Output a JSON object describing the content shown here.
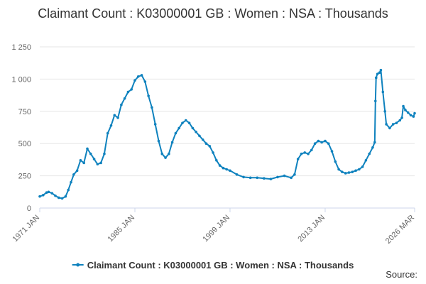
{
  "title": "Claimant Count : K03000001 GB : Women : NSA : Thousands",
  "source_label": "Source:",
  "chart_data": {
    "type": "line",
    "xlabel": "",
    "ylabel": "",
    "title": "Claimant Count : K03000001 GB : Women : NSA : Thousands",
    "y_ticks": [
      "0",
      "250",
      "500",
      "750",
      "1 000",
      "1 250"
    ],
    "y_tick_values": [
      0,
      250,
      500,
      750,
      1000,
      1250
    ],
    "ylim": [
      0,
      1250
    ],
    "x_ticks": [
      "1971 JAN",
      "1985 JAN",
      "1999 JAN",
      "2013 JAN",
      "2026 MAR"
    ],
    "x_tick_values": [
      1971.0,
      1985.0,
      1999.0,
      2013.0,
      2026.17
    ],
    "xlim": [
      1971.0,
      2026.17
    ],
    "grid": true,
    "legend_position": "bottom",
    "color": "#0f82be",
    "series": [
      {
        "name": "Claimant Count : K03000001 GB : Women : NSA : Thousands",
        "points": [
          [
            1971.0,
            90
          ],
          [
            1971.5,
            100
          ],
          [
            1972.0,
            120
          ],
          [
            1972.3,
            125
          ],
          [
            1972.8,
            115
          ],
          [
            1973.3,
            95
          ],
          [
            1973.8,
            80
          ],
          [
            1974.3,
            75
          ],
          [
            1974.8,
            90
          ],
          [
            1975.2,
            140
          ],
          [
            1975.6,
            200
          ],
          [
            1976.0,
            260
          ],
          [
            1976.5,
            290
          ],
          [
            1977.0,
            370
          ],
          [
            1977.5,
            350
          ],
          [
            1978.0,
            460
          ],
          [
            1978.5,
            420
          ],
          [
            1979.0,
            380
          ],
          [
            1979.5,
            340
          ],
          [
            1980.0,
            350
          ],
          [
            1980.5,
            420
          ],
          [
            1981.0,
            580
          ],
          [
            1981.5,
            640
          ],
          [
            1982.0,
            720
          ],
          [
            1982.5,
            700
          ],
          [
            1983.0,
            800
          ],
          [
            1983.5,
            850
          ],
          [
            1984.0,
            900
          ],
          [
            1984.5,
            920
          ],
          [
            1985.0,
            990
          ],
          [
            1985.5,
            1020
          ],
          [
            1986.0,
            1030
          ],
          [
            1986.5,
            980
          ],
          [
            1987.0,
            870
          ],
          [
            1987.5,
            780
          ],
          [
            1988.0,
            650
          ],
          [
            1988.5,
            520
          ],
          [
            1989.0,
            420
          ],
          [
            1989.5,
            390
          ],
          [
            1990.0,
            420
          ],
          [
            1990.5,
            510
          ],
          [
            1991.0,
            580
          ],
          [
            1991.5,
            620
          ],
          [
            1992.0,
            660
          ],
          [
            1992.5,
            680
          ],
          [
            1993.0,
            660
          ],
          [
            1993.5,
            620
          ],
          [
            1994.0,
            590
          ],
          [
            1994.5,
            560
          ],
          [
            1995.0,
            530
          ],
          [
            1995.5,
            500
          ],
          [
            1996.0,
            480
          ],
          [
            1996.5,
            430
          ],
          [
            1997.0,
            370
          ],
          [
            1997.5,
            330
          ],
          [
            1998.0,
            310
          ],
          [
            1998.5,
            300
          ],
          [
            1999.0,
            290
          ],
          [
            2000.0,
            260
          ],
          [
            2001.0,
            240
          ],
          [
            2002.0,
            235
          ],
          [
            2003.0,
            235
          ],
          [
            2004.0,
            230
          ],
          [
            2005.0,
            225
          ],
          [
            2006.0,
            240
          ],
          [
            2007.0,
            250
          ],
          [
            2008.0,
            235
          ],
          [
            2008.5,
            260
          ],
          [
            2009.0,
            380
          ],
          [
            2009.5,
            420
          ],
          [
            2010.0,
            430
          ],
          [
            2010.5,
            420
          ],
          [
            2011.0,
            450
          ],
          [
            2011.5,
            500
          ],
          [
            2012.0,
            520
          ],
          [
            2012.5,
            510
          ],
          [
            2013.0,
            520
          ],
          [
            2013.5,
            500
          ],
          [
            2014.0,
            440
          ],
          [
            2014.5,
            360
          ],
          [
            2015.0,
            300
          ],
          [
            2015.5,
            280
          ],
          [
            2016.0,
            270
          ],
          [
            2016.5,
            275
          ],
          [
            2017.0,
            280
          ],
          [
            2017.5,
            290
          ],
          [
            2018.0,
            300
          ],
          [
            2018.5,
            320
          ],
          [
            2019.0,
            370
          ],
          [
            2019.5,
            420
          ],
          [
            2020.0,
            470
          ],
          [
            2020.3,
            510
          ],
          [
            2020.4,
            830
          ],
          [
            2020.5,
            1010
          ],
          [
            2020.7,
            1040
          ],
          [
            2021.0,
            1050
          ],
          [
            2021.2,
            1070
          ],
          [
            2021.5,
            900
          ],
          [
            2021.8,
            750
          ],
          [
            2022.0,
            650
          ],
          [
            2022.5,
            620
          ],
          [
            2023.0,
            650
          ],
          [
            2023.5,
            660
          ],
          [
            2024.0,
            680
          ],
          [
            2024.3,
            700
          ],
          [
            2024.5,
            790
          ],
          [
            2024.8,
            760
          ],
          [
            2025.2,
            740
          ],
          [
            2025.6,
            720
          ],
          [
            2026.0,
            710
          ],
          [
            2026.17,
            735
          ]
        ]
      }
    ]
  }
}
